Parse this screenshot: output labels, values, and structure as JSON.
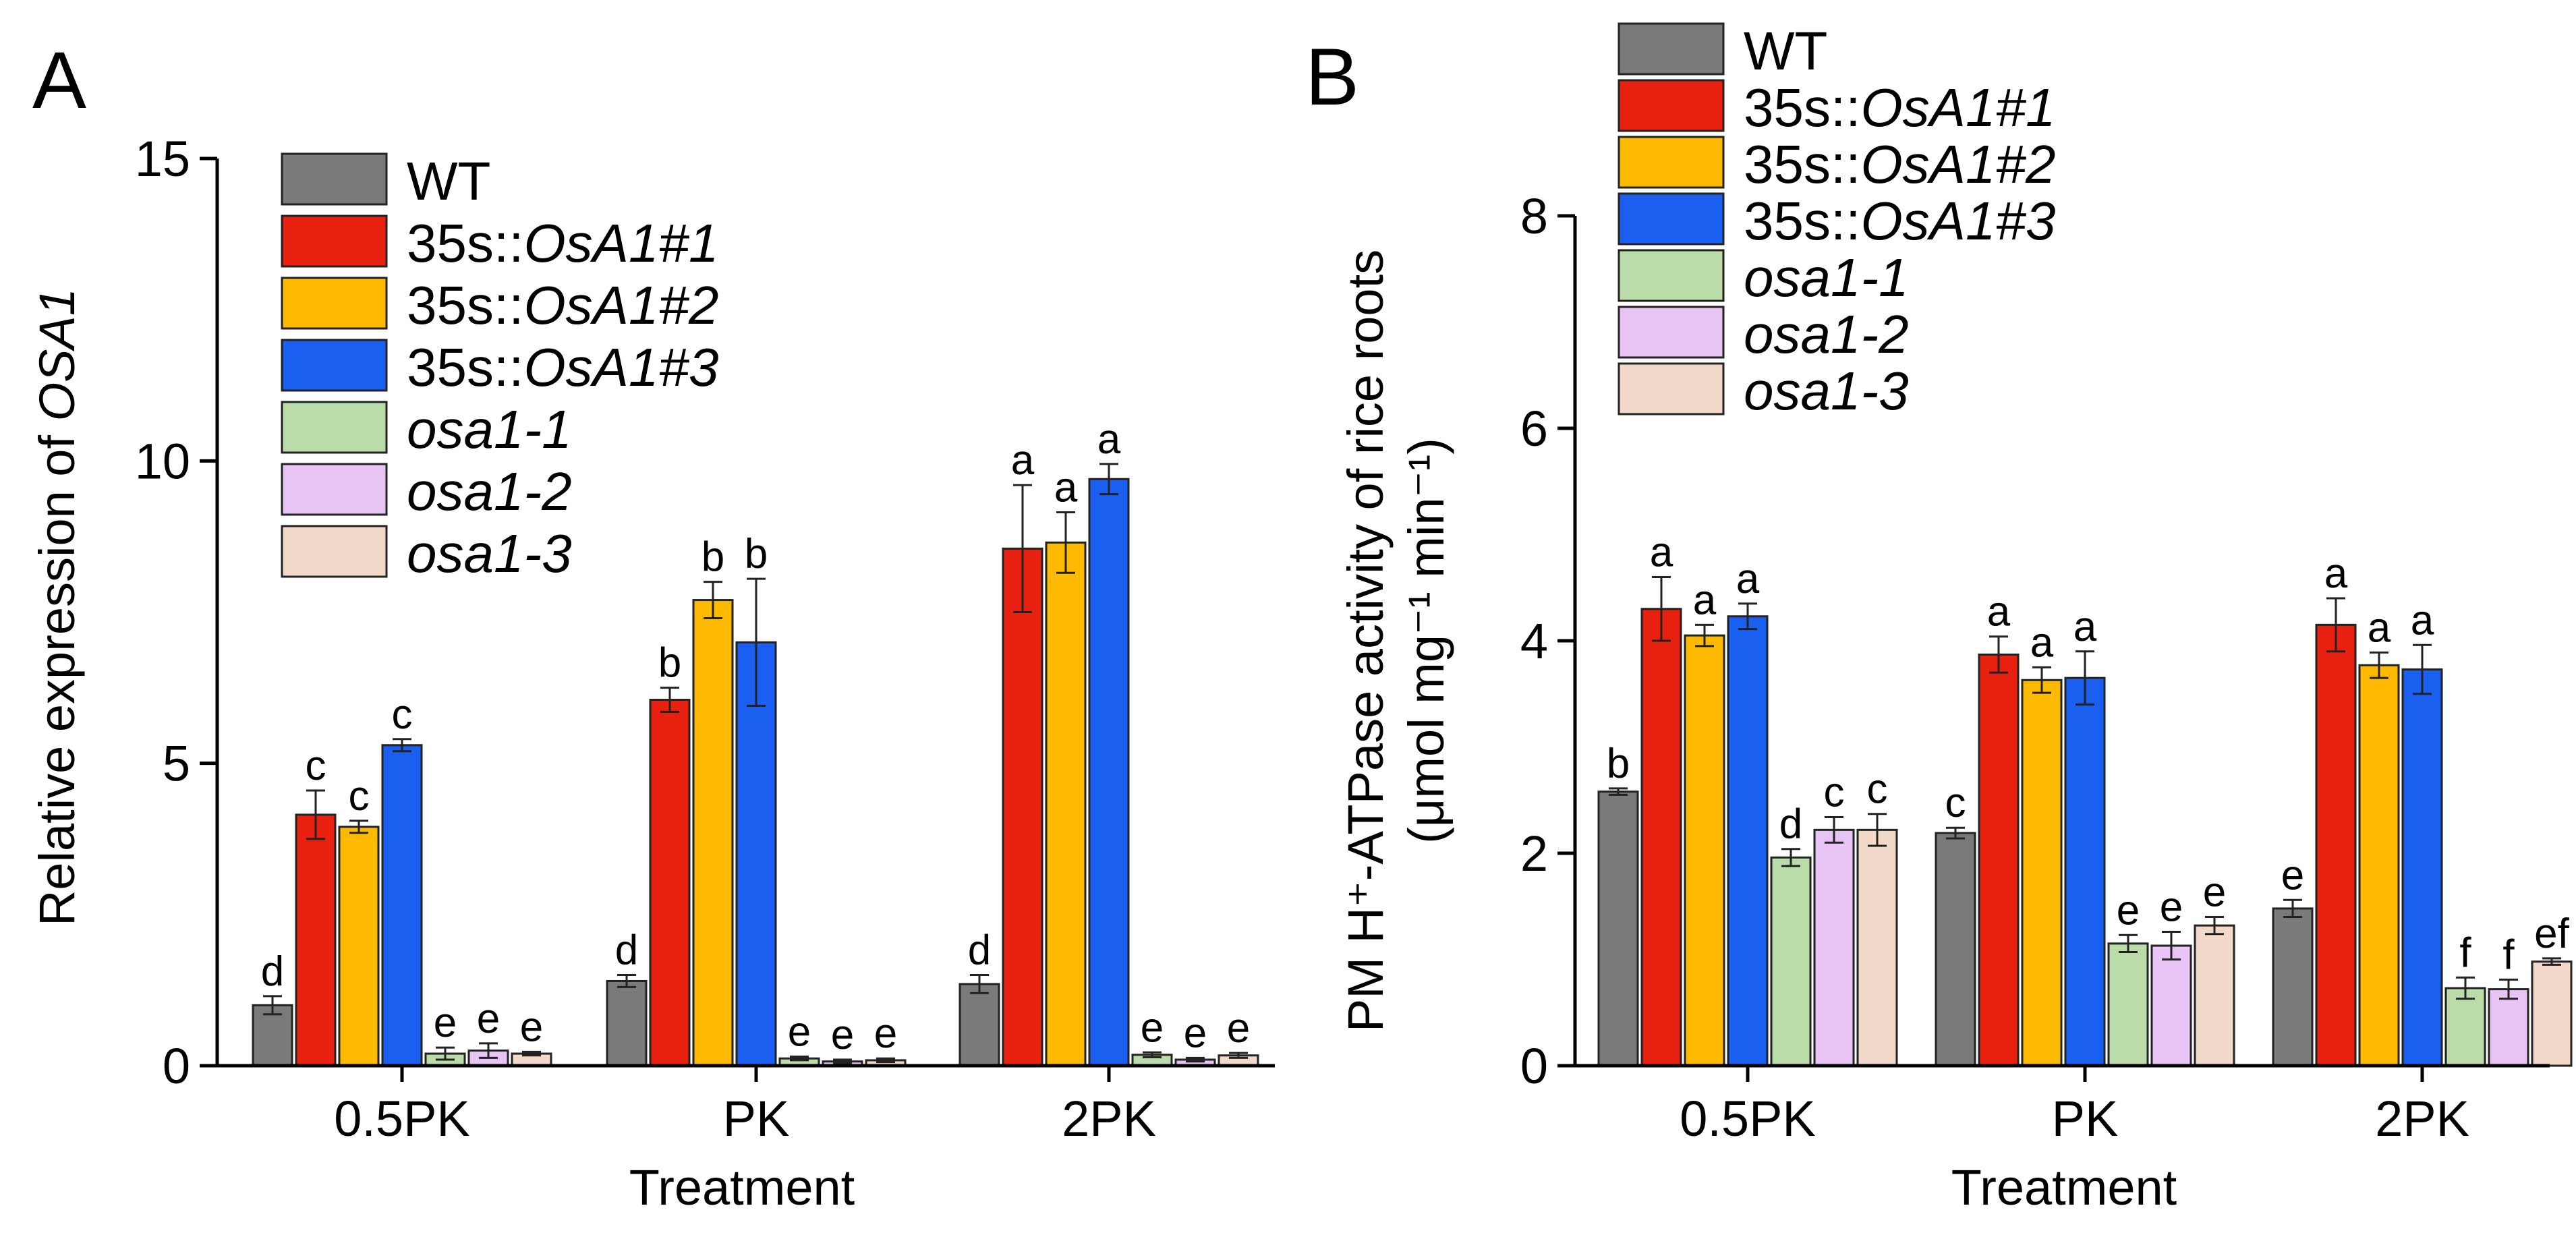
{
  "legend": [
    {
      "plain": "WT",
      "italic": "",
      "color": "#7a7a7a"
    },
    {
      "plain": "35s::",
      "italic": "OsA1#1",
      "color": "#e8200f"
    },
    {
      "plain": "35s::",
      "italic": "OsA1#2",
      "color": "#fdba00"
    },
    {
      "plain": "35s::",
      "italic": "OsA1#3",
      "color": "#1a5ff0"
    },
    {
      "plain": "",
      "italic": "osa1-1",
      "color": "#b9dca8"
    },
    {
      "plain": "",
      "italic": "osa1-2",
      "color": "#e7c4f4"
    },
    {
      "plain": "",
      "italic": "osa1-3",
      "color": "#f2d8c9"
    }
  ],
  "chart_data": [
    {
      "type": "bar",
      "panel": "A",
      "categories": [
        "0.5PK",
        "PK",
        "2PK"
      ],
      "xlabel": "Treatment",
      "ylabel": "Relative expression of ",
      "ylabel_italic": "OSA1",
      "ylim": [
        0,
        15
      ],
      "yticks": [
        "0",
        "5",
        "10",
        "15"
      ],
      "series": [
        {
          "name": "WT",
          "values": [
            1.0,
            1.4,
            1.35
          ],
          "errors": [
            0.15,
            0.1,
            0.15
          ],
          "labels": [
            "d",
            "d",
            "d"
          ]
        },
        {
          "name": "35s::OsA1#1",
          "values": [
            4.15,
            6.05,
            8.55
          ],
          "errors": [
            0.4,
            0.2,
            1.05
          ],
          "labels": [
            "c",
            "b",
            "a"
          ]
        },
        {
          "name": "35s::OsA1#2",
          "values": [
            3.95,
            7.7,
            8.65
          ],
          "errors": [
            0.1,
            0.3,
            0.5
          ],
          "labels": [
            "c",
            "b",
            "a"
          ]
        },
        {
          "name": "35s::OsA1#3",
          "values": [
            5.3,
            7.0,
            9.7
          ],
          "errors": [
            0.1,
            1.05,
            0.25
          ],
          "labels": [
            "c",
            "b",
            "a"
          ]
        },
        {
          "name": "osa1-1",
          "values": [
            0.2,
            0.12,
            0.18
          ],
          "errors": [
            0.1,
            0.03,
            0.04
          ],
          "labels": [
            "e",
            "e",
            "e"
          ]
        },
        {
          "name": "osa1-2",
          "values": [
            0.25,
            0.07,
            0.1
          ],
          "errors": [
            0.12,
            0.03,
            0.03
          ],
          "labels": [
            "e",
            "e",
            "e"
          ]
        },
        {
          "name": "osa1-3",
          "values": [
            0.2,
            0.09,
            0.17
          ],
          "errors": [
            0.03,
            0.03,
            0.04
          ],
          "labels": [
            "e",
            "e",
            "e"
          ]
        }
      ]
    },
    {
      "type": "bar",
      "panel": "B",
      "categories": [
        "0.5PK",
        "PK",
        "2PK"
      ],
      "xlabel": "Treatment",
      "ylabel_line1": "PM H⁺-ATPase activity of rice roots",
      "ylabel_line2": "(μmol mg⁻¹ min⁻¹)",
      "ylim": [
        0,
        8
      ],
      "yticks": [
        "0",
        "2",
        "4",
        "6",
        "8"
      ],
      "series": [
        {
          "name": "WT",
          "values": [
            2.58,
            2.19,
            1.48
          ],
          "errors": [
            0.03,
            0.05,
            0.08
          ],
          "labels": [
            "b",
            "c",
            "e"
          ]
        },
        {
          "name": "35s::OsA1#1",
          "values": [
            4.3,
            3.87,
            4.15
          ],
          "errors": [
            0.3,
            0.17,
            0.25
          ],
          "labels": [
            "a",
            "a",
            "a"
          ]
        },
        {
          "name": "35s::OsA1#2",
          "values": [
            4.05,
            3.63,
            3.77
          ],
          "errors": [
            0.1,
            0.12,
            0.12
          ],
          "labels": [
            "a",
            "a",
            "a"
          ]
        },
        {
          "name": "35s::OsA1#3",
          "values": [
            4.23,
            3.65,
            3.73
          ],
          "errors": [
            0.12,
            0.25,
            0.23
          ],
          "labels": [
            "a",
            "a",
            "a"
          ]
        },
        {
          "name": "osa1-1",
          "values": [
            1.96,
            1.15,
            0.73
          ],
          "errors": [
            0.08,
            0.08,
            0.1
          ],
          "labels": [
            "d",
            "e",
            "f"
          ]
        },
        {
          "name": "osa1-2",
          "values": [
            2.22,
            1.13,
            0.72
          ],
          "errors": [
            0.12,
            0.13,
            0.09
          ],
          "labels": [
            "c",
            "e",
            "f"
          ]
        },
        {
          "name": "osa1-3",
          "values": [
            2.22,
            1.32,
            0.98
          ],
          "errors": [
            0.15,
            0.08,
            0.03
          ],
          "labels": [
            "c",
            "e",
            "ef"
          ]
        }
      ]
    }
  ]
}
